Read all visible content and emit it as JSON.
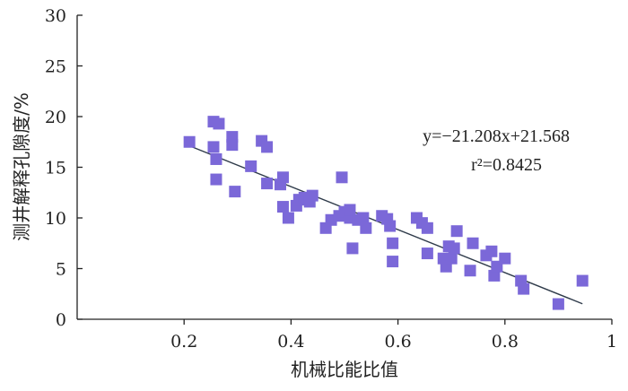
{
  "chart_data": {
    "type": "scatter",
    "title": "",
    "xlabel": "机械比能比值",
    "ylabel": "测井解释孔隙度/%",
    "xlim": [
      0,
      1
    ],
    "ylim": [
      0,
      30
    ],
    "x_ticks": [
      0.2,
      0.4,
      0.6,
      0.8,
      1
    ],
    "x_tick_labels": [
      "0.2",
      "0.4",
      "0.6",
      "0.8",
      "1"
    ],
    "y_ticks": [
      0,
      5,
      10,
      15,
      20,
      25,
      30
    ],
    "y_tick_labels": [
      "0",
      "5",
      "10",
      "15",
      "20",
      "25",
      "30"
    ],
    "grid": false,
    "marker_color": "#7b68d8",
    "line_color": "#2f3b4a",
    "points": [
      [
        0.21,
        17.5
      ],
      [
        0.255,
        19.5
      ],
      [
        0.265,
        19.3
      ],
      [
        0.255,
        17.0
      ],
      [
        0.26,
        15.8
      ],
      [
        0.26,
        13.8
      ],
      [
        0.29,
        18.0
      ],
      [
        0.29,
        17.2
      ],
      [
        0.295,
        12.6
      ],
      [
        0.325,
        15.1
      ],
      [
        0.345,
        17.6
      ],
      [
        0.355,
        17.0
      ],
      [
        0.355,
        13.4
      ],
      [
        0.38,
        13.3
      ],
      [
        0.385,
        14.0
      ],
      [
        0.385,
        11.1
      ],
      [
        0.395,
        10.0
      ],
      [
        0.41,
        11.2
      ],
      [
        0.415,
        11.8
      ],
      [
        0.425,
        12.0
      ],
      [
        0.435,
        11.6
      ],
      [
        0.44,
        12.2
      ],
      [
        0.465,
        9.0
      ],
      [
        0.475,
        9.8
      ],
      [
        0.49,
        10.2
      ],
      [
        0.495,
        14.0
      ],
      [
        0.5,
        10.6
      ],
      [
        0.51,
        10.0
      ],
      [
        0.51,
        10.8
      ],
      [
        0.515,
        7.0
      ],
      [
        0.525,
        9.8
      ],
      [
        0.535,
        10.0
      ],
      [
        0.54,
        9.0
      ],
      [
        0.57,
        10.2
      ],
      [
        0.58,
        9.9
      ],
      [
        0.585,
        9.2
      ],
      [
        0.59,
        7.5
      ],
      [
        0.59,
        5.7
      ],
      [
        0.635,
        10.0
      ],
      [
        0.645,
        9.5
      ],
      [
        0.655,
        9.0
      ],
      [
        0.655,
        6.5
      ],
      [
        0.685,
        6.0
      ],
      [
        0.69,
        5.2
      ],
      [
        0.695,
        7.2
      ],
      [
        0.7,
        6.0
      ],
      [
        0.705,
        7.0
      ],
      [
        0.71,
        8.7
      ],
      [
        0.735,
        4.8
      ],
      [
        0.74,
        7.5
      ],
      [
        0.765,
        6.3
      ],
      [
        0.775,
        6.7
      ],
      [
        0.78,
        4.3
      ],
      [
        0.785,
        5.2
      ],
      [
        0.8,
        6.0
      ],
      [
        0.83,
        3.8
      ],
      [
        0.835,
        3.0
      ],
      [
        0.9,
        1.5
      ],
      [
        0.945,
        3.8
      ]
    ],
    "fit": {
      "slope": -21.208,
      "intercept": 21.568,
      "x_range": [
        0.21,
        0.945
      ],
      "equation_text": "y=−21.208x+21.568",
      "r2_text": "r²=0.8425"
    }
  }
}
